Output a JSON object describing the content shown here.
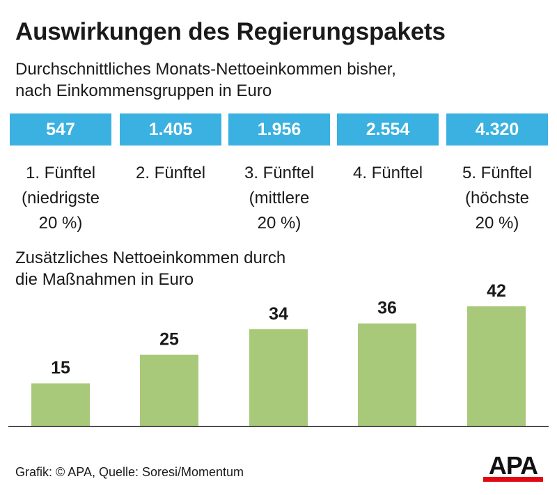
{
  "title": "Auswirkungen des Regierungspakets",
  "subtitle_lines": [
    "Durchschnittliches Monats-Nettoeinkommen bisher,",
    "nach Einkommensgruppen in Euro"
  ],
  "groups": [
    {
      "income": "547",
      "label_lines": [
        "1. Fünftel",
        "(niedrigste",
        "20 %)"
      ]
    },
    {
      "income": "1.405",
      "label_lines": [
        "2. Fünftel"
      ]
    },
    {
      "income": "1.956",
      "label_lines": [
        "3. Fünftel",
        "(mittlere",
        "20 %)"
      ]
    },
    {
      "income": "2.554",
      "label_lines": [
        "4. Fünftel"
      ]
    },
    {
      "income": "4.320",
      "label_lines": [
        "5. Fünftel",
        "(höchste",
        "20 %)"
      ]
    }
  ],
  "bar_section_lines": [
    "Zusätzliches Nettoeinkommen durch",
    "die Maßnahmen in Euro"
  ],
  "chart_data": {
    "type": "bar",
    "categories": [
      "1. Fünftel",
      "2. Fünftel",
      "3. Fünftel",
      "4. Fünftel",
      "5. Fünftel"
    ],
    "values": [
      15,
      25,
      34,
      36,
      42
    ],
    "ylim": [
      0,
      42
    ],
    "grid": false,
    "bar_color": "#a9c97a"
  },
  "colors": {
    "box": "#3ab1e0",
    "bar": "#a9c97a",
    "logo_accent": "#e30613"
  },
  "footer": "Grafik: © APA, Quelle: Soresi/Momentum",
  "logo": "APA"
}
